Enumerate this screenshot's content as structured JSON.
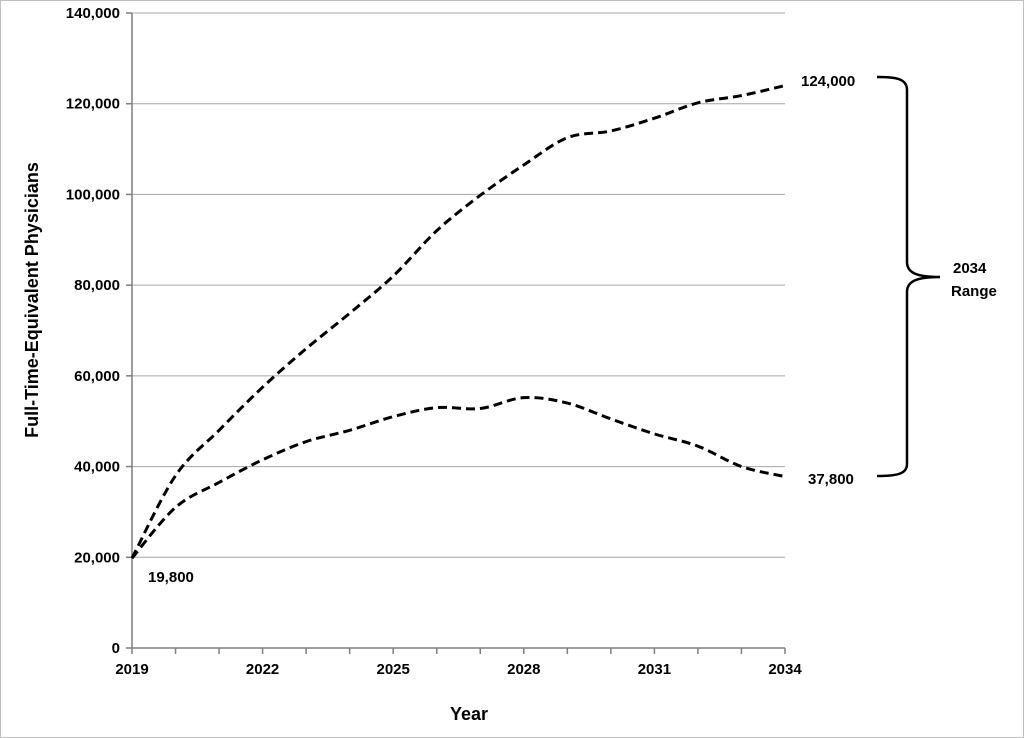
{
  "chart_data": {
    "type": "line",
    "title": "",
    "xlabel": "Year",
    "ylabel": "Full-Time-Equivalent Physicians",
    "xlim": [
      2019,
      2034
    ],
    "ylim": [
      0,
      140000
    ],
    "x_ticks": [
      2019,
      2022,
      2025,
      2028,
      2031,
      2034
    ],
    "x_tick_labels": [
      "2019",
      "2022",
      "2025",
      "2028",
      "2031",
      "2034"
    ],
    "y_ticks": [
      0,
      20000,
      40000,
      60000,
      80000,
      100000,
      120000,
      140000
    ],
    "y_tick_labels": [
      "0",
      "20,000",
      "40,000",
      "60,000",
      "80,000",
      "100,000",
      "120,000",
      "140,000"
    ],
    "grid": true,
    "line_style": "dashed",
    "line_color": "#000000",
    "series": [
      {
        "x": [
          2019,
          2020,
          2021,
          2022,
          2023,
          2024,
          2025,
          2026,
          2027,
          2028,
          2029,
          2030,
          2031,
          2032,
          2033,
          2034
        ],
        "values": [
          19800,
          38000,
          48000,
          57500,
          66000,
          73800,
          82000,
          92000,
          99800,
          106500,
          112500,
          114000,
          116800,
          120200,
          121800,
          124000
        ]
      },
      {
        "x": [
          2019,
          2020,
          2021,
          2022,
          2023,
          2024,
          2025,
          2026,
          2027,
          2028,
          2029,
          2030,
          2031,
          2032,
          2033,
          2034
        ],
        "values": [
          19800,
          31000,
          36500,
          41500,
          45500,
          48000,
          51000,
          53000,
          52800,
          55200,
          54000,
          50500,
          47200,
          44500,
          40000,
          37800
        ]
      }
    ],
    "annotations": {
      "start_label": "19,800",
      "upper_end_label": "124,000",
      "lower_end_label": "37,800",
      "range_label_line1": "2034",
      "range_label_line2": "Range"
    }
  }
}
